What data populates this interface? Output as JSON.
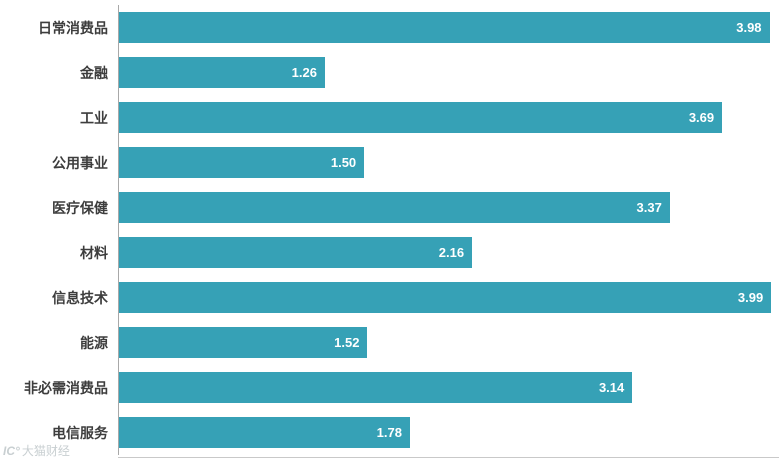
{
  "chart_data": {
    "type": "bar",
    "orientation": "horizontal",
    "title": "",
    "xlabel": "",
    "ylabel": "",
    "grid": false,
    "legend": null,
    "xlim": [
      0,
      4.05
    ],
    "bar_color": "#36a1b6",
    "value_label_color": "#ffffff",
    "value_decimals": 2,
    "categories": [
      "日常消费品",
      "金融",
      "工业",
      "公用事业",
      "医疗保健",
      "材料",
      "信息技术",
      "能源",
      "非必需消费品",
      "电信服务"
    ],
    "values": [
      3.98,
      1.26,
      3.69,
      1.5,
      3.37,
      2.16,
      3.99,
      1.52,
      3.14,
      1.78
    ]
  },
  "watermark": {
    "logo": "IC°",
    "text": "大猫财经"
  }
}
